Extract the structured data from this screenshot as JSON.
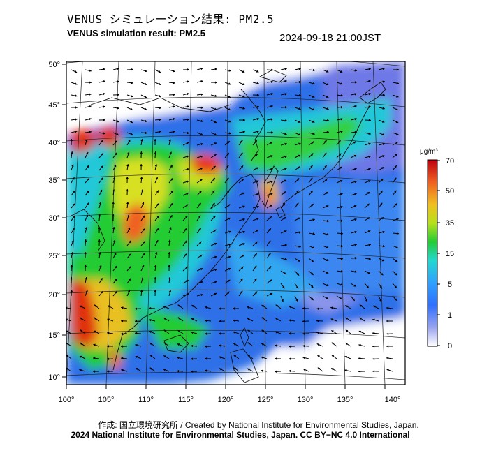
{
  "title_jp": "VENUS シミュレーション結果: PM2.5",
  "title_en": "VENUS simulation result: PM2.5",
  "timestamp": "2024-09-18 21:00JST",
  "map": {
    "lon_ticks": [
      "100°",
      "105°",
      "110°",
      "115°",
      "120°",
      "125°",
      "130°",
      "135°",
      "140°"
    ],
    "lat_ticks": [
      "50°",
      "45°",
      "40°",
      "35°",
      "30°",
      "25°",
      "20°",
      "15°",
      "10°"
    ]
  },
  "colorbar": {
    "unit": "μg/m³",
    "ticks": [
      "70",
      "50",
      "35",
      "15",
      "5",
      "1",
      "0"
    ],
    "colors": [
      "#f0f0ff",
      "#6e78e6",
      "#2f8fff",
      "#22d8d0",
      "#22cc33",
      "#b7e01a",
      "#f0b020",
      "#f06020",
      "#d01010"
    ]
  },
  "credits": {
    "line1": "作成: 国立環境研究所 / Created by National Institute for Environmental Studies, Japan.",
    "line2": "2024 National Institute for Environmental Studies, Japan. CC BY−NC 4.0 International"
  }
}
